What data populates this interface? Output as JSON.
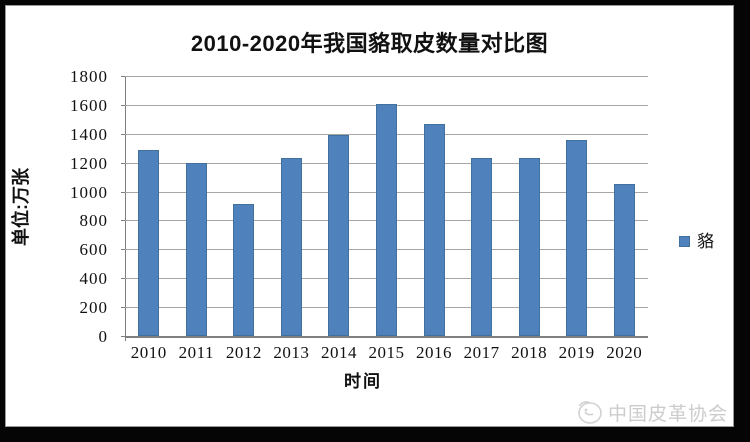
{
  "chart_data": {
    "type": "bar",
    "title": "2010-2020年我国貉取皮数量对比图",
    "ylabel": "单位:万张",
    "xlabel": "时间",
    "categories": [
      "2010",
      "2011",
      "2012",
      "2013",
      "2014",
      "2015",
      "2016",
      "2017",
      "2018",
      "2019",
      "2020"
    ],
    "series": [
      {
        "name": "貉",
        "values": [
          1290,
          1195,
          915,
          1235,
          1395,
          1605,
          1470,
          1235,
          1235,
          1360,
          1050
        ]
      }
    ],
    "ylim": [
      0,
      1800
    ],
    "ytick_step": 200,
    "grid": true,
    "legend_position": "right",
    "bar_color": "#4f81bd"
  },
  "legend": {
    "label": "貉",
    "swatch_color": "#4f81bd"
  },
  "watermark": {
    "text": "中国皮革协会"
  },
  "colors": {
    "bar": "#4f81bd",
    "bar_border": "#41719c",
    "gridline": "#a6a6a6",
    "axis": "#7f7f7f",
    "text": "#111111",
    "watermark": "#cccccc",
    "frame": "#050505",
    "background": "#ffffff"
  }
}
